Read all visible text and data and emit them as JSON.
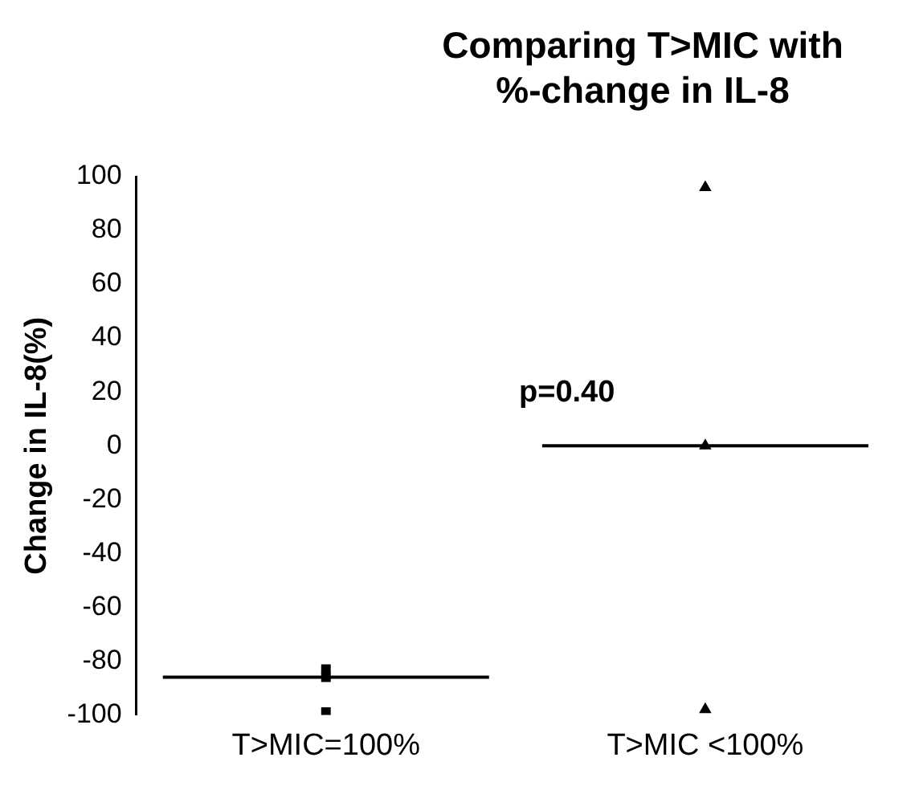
{
  "chart_data": {
    "type": "scatter",
    "title": "Comparing T>MIC with %-change in IL-8",
    "ylabel": "Change in IL-8(%)",
    "categories": [
      "T>MIC=100%",
      "T>MIC <100%"
    ],
    "series": [
      {
        "color": "#000000",
        "marker": "square",
        "x": [
          "T>MIC=100%",
          "T>MIC=100%",
          "T>MIC=100%"
        ],
        "values": [
          -83,
          -86,
          -99
        ]
      },
      {
        "color": "#000000",
        "marker": "triangle",
        "x": [
          "T>MIC <100%",
          "T>MIC <100%",
          "T>MIC <100%"
        ],
        "values": [
          96,
          0,
          -98
        ]
      }
    ],
    "ref_lines": [
      {
        "axis": "y",
        "value": -86,
        "color": "#000000"
      },
      {
        "axis": "y",
        "value": 0,
        "color": "#000000"
      }
    ],
    "annotations": [
      "p=0.40"
    ],
    "ylim": [
      -100,
      100
    ],
    "yticks": [
      -100,
      -80,
      -60,
      -40,
      -20,
      0,
      20,
      40,
      60,
      80,
      100
    ],
    "grid": false,
    "legend": false
  }
}
